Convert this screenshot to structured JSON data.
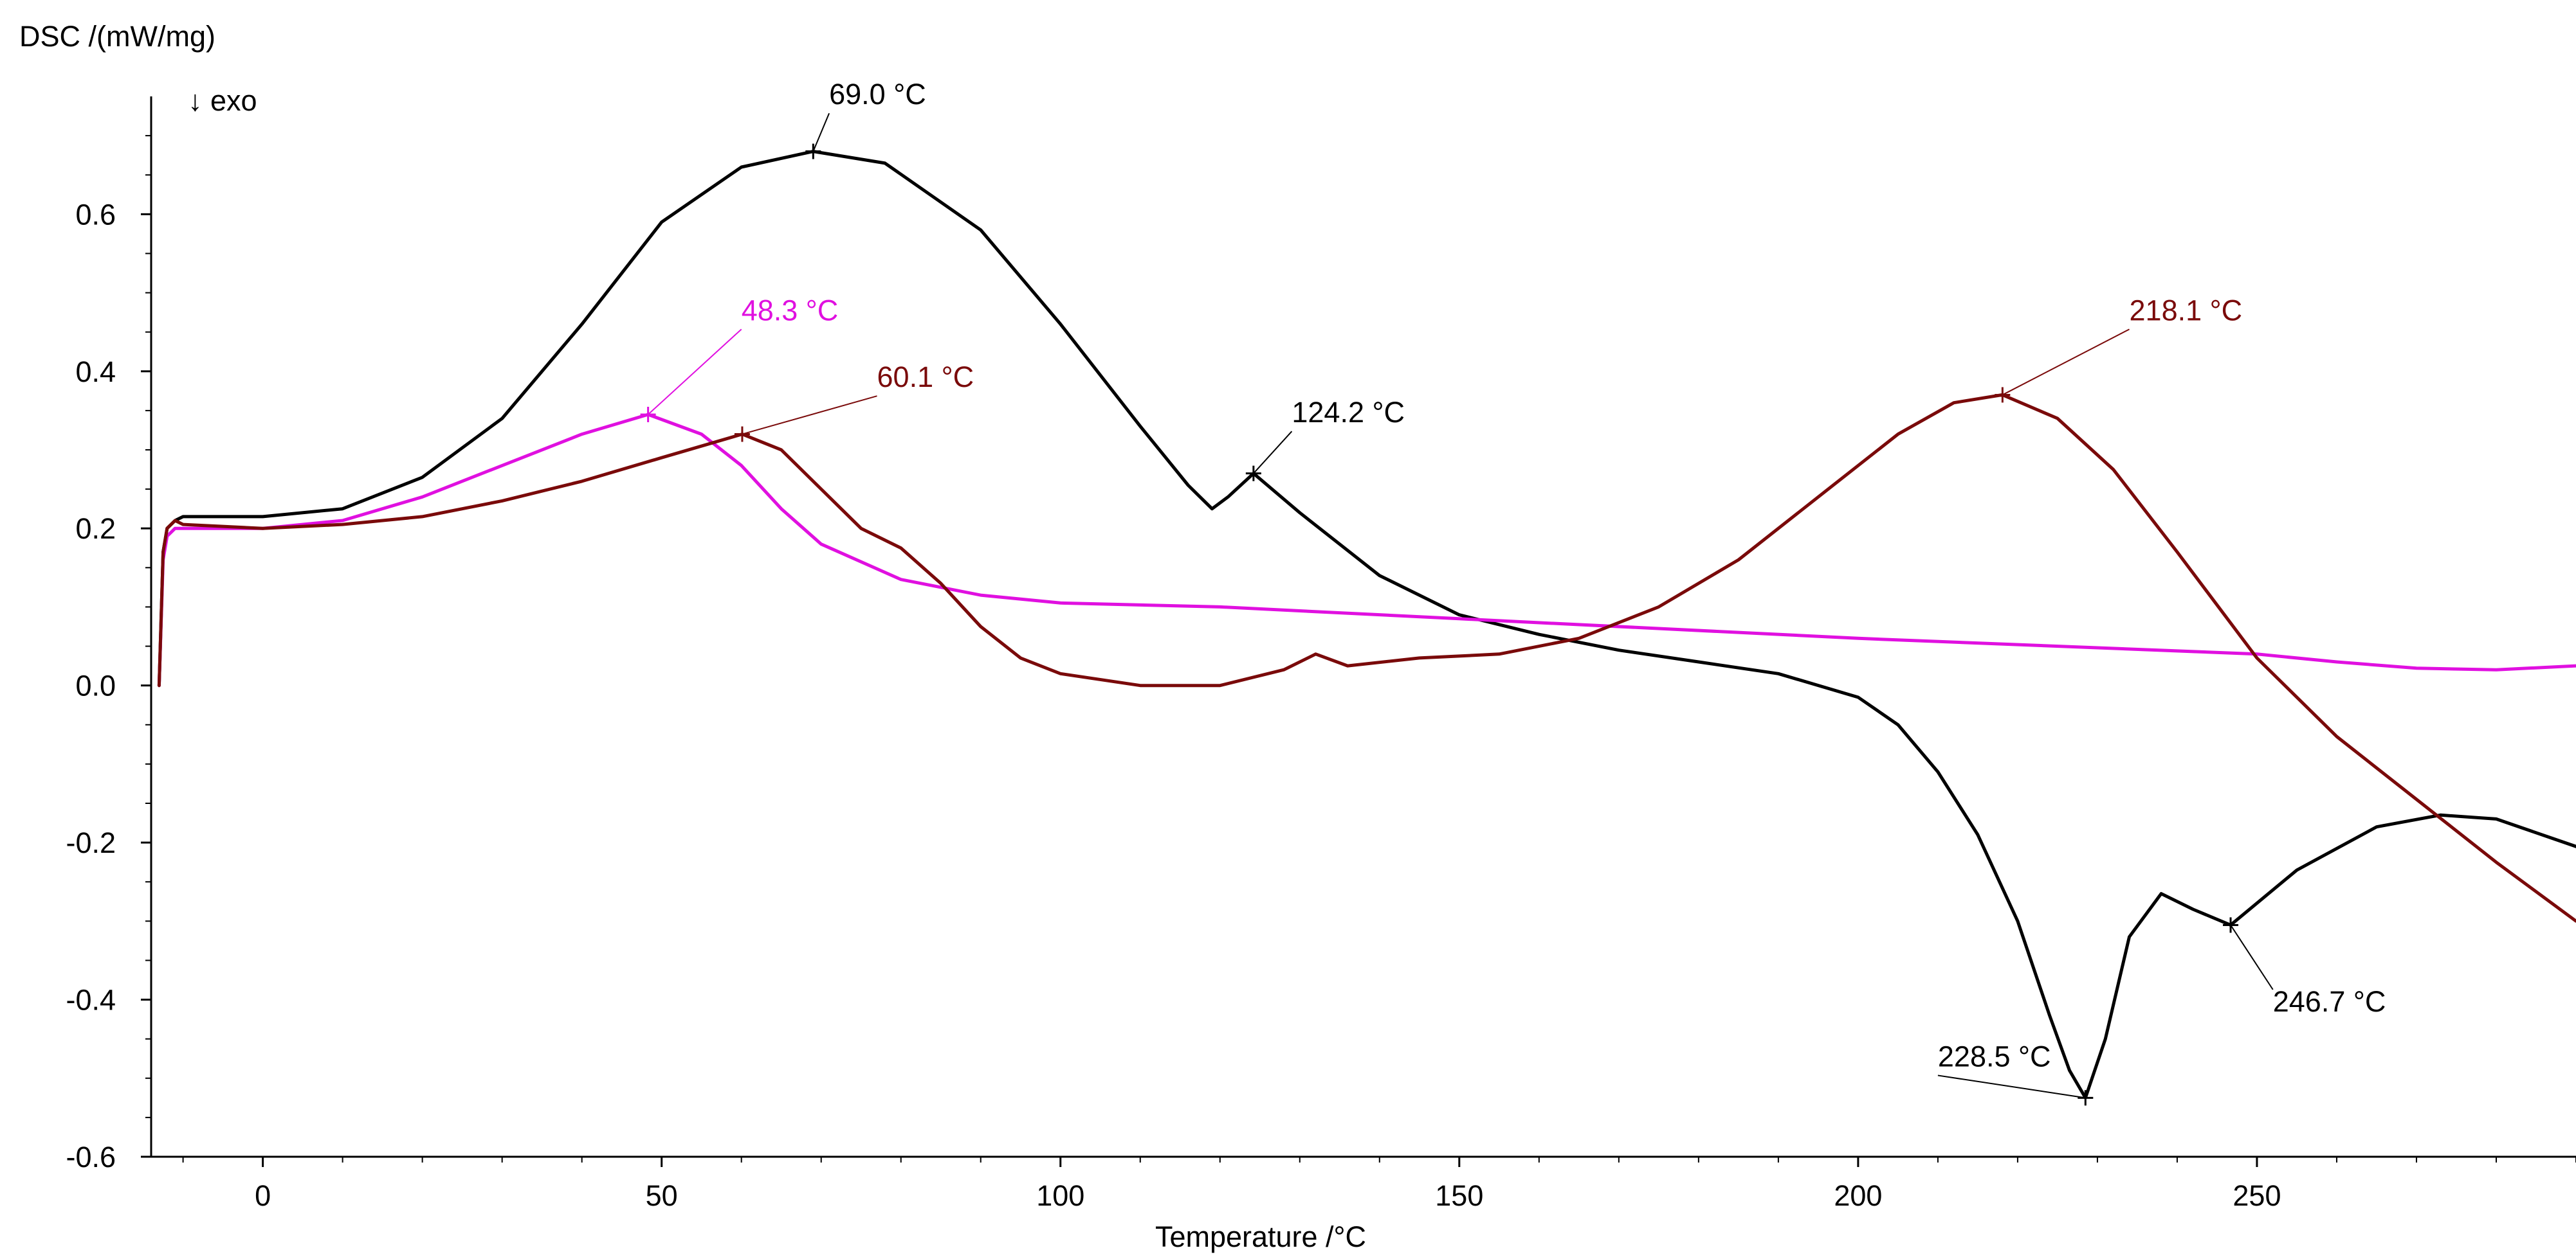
{
  "chart_data": {
    "type": "line",
    "ylabel": "DSC /(mW/mg)",
    "xlabel": "Temperature /°C",
    "direction_note": "↓ exo",
    "xlim": [
      -14,
      290
    ],
    "ylim": [
      -0.6,
      0.75
    ],
    "x_ticks": [
      0,
      50,
      100,
      150,
      200,
      250
    ],
    "x_tick_labels": [
      "0",
      "50",
      "100",
      "150",
      "200",
      "250"
    ],
    "y_ticks": [
      0.6,
      0.4,
      0.2,
      0.0,
      -0.2,
      -0.4,
      -0.6
    ],
    "y_tick_labels": [
      "0.6",
      "0.4",
      "0.2",
      "0.0",
      "-0.2",
      "-0.4",
      "-0.6"
    ],
    "grid": false,
    "series": [
      {
        "name": "black",
        "color": "#000000",
        "x": [
          -13.0,
          -12.5,
          -12.0,
          -11.0,
          -10.0,
          -5.0,
          0.0,
          10.0,
          20.0,
          30.0,
          40.0,
          50.0,
          60.0,
          69.0,
          78.0,
          90.0,
          100.0,
          110.0,
          116.0,
          119.0,
          121.0,
          124.2,
          130.0,
          140.0,
          150.0,
          160.0,
          170.0,
          180.0,
          190.0,
          200.0,
          205.0,
          210.0,
          215.0,
          220.0,
          224.0,
          226.5,
          228.5,
          231.0,
          234.0,
          238.0,
          242.0,
          246.7,
          255.0,
          265.0,
          273.0,
          280.0,
          290.0
        ],
        "y": [
          0.0,
          0.17,
          0.2,
          0.21,
          0.215,
          0.215,
          0.215,
          0.225,
          0.265,
          0.34,
          0.46,
          0.59,
          0.66,
          0.68,
          0.665,
          0.58,
          0.46,
          0.33,
          0.255,
          0.225,
          0.24,
          0.27,
          0.22,
          0.14,
          0.09,
          0.065,
          0.045,
          0.03,
          0.015,
          -0.015,
          -0.05,
          -0.11,
          -0.19,
          -0.3,
          -0.42,
          -0.49,
          -0.525,
          -0.45,
          -0.32,
          -0.265,
          -0.285,
          -0.305,
          -0.235,
          -0.18,
          -0.165,
          -0.17,
          -0.205
        ]
      },
      {
        "name": "magenta",
        "color": "#e010e0",
        "x": [
          -13.0,
          -12.5,
          -12.0,
          -11.0,
          -10.0,
          0.0,
          10.0,
          20.0,
          30.0,
          40.0,
          48.3,
          55.0,
          60.0,
          65.0,
          70.0,
          80.0,
          90.0,
          100.0,
          120.0,
          150.0,
          200.0,
          250.0,
          260.0,
          270.0,
          280.0,
          290.0
        ],
        "y": [
          0.0,
          0.16,
          0.19,
          0.2,
          0.2,
          0.2,
          0.21,
          0.24,
          0.28,
          0.32,
          0.345,
          0.32,
          0.28,
          0.225,
          0.18,
          0.135,
          0.115,
          0.105,
          0.1,
          0.085,
          0.06,
          0.04,
          0.03,
          0.022,
          0.02,
          0.025
        ]
      },
      {
        "name": "darkred",
        "color": "#7a0a0a",
        "x": [
          -13.0,
          -12.5,
          -12.0,
          -11.0,
          -10.0,
          0.0,
          10.0,
          20.0,
          30.0,
          40.0,
          50.0,
          60.1,
          65.0,
          70.0,
          75.0,
          80.0,
          85.0,
          90.0,
          95.0,
          100.0,
          110.0,
          120.0,
          128.0,
          132.0,
          136.0,
          145.0,
          155.0,
          165.0,
          175.0,
          185.0,
          195.0,
          205.0,
          212.0,
          218.1,
          225.0,
          232.0,
          240.0,
          250.0,
          260.0,
          270.0,
          280.0,
          290.0
        ],
        "y": [
          0.0,
          0.17,
          0.2,
          0.21,
          0.205,
          0.2,
          0.205,
          0.215,
          0.235,
          0.26,
          0.29,
          0.32,
          0.3,
          0.25,
          0.2,
          0.175,
          0.13,
          0.075,
          0.035,
          0.015,
          0.0,
          0.0,
          0.02,
          0.04,
          0.025,
          0.035,
          0.04,
          0.06,
          0.1,
          0.16,
          0.24,
          0.32,
          0.36,
          0.37,
          0.34,
          0.275,
          0.17,
          0.035,
          -0.065,
          -0.145,
          -0.225,
          -0.3
        ]
      }
    ],
    "annotations": [
      {
        "text": "69.0 °C",
        "series": "black",
        "x": 69.0,
        "y": 0.68,
        "label_x": 71.0,
        "label_y": 0.74
      },
      {
        "text": "124.2 °C",
        "series": "black",
        "x": 124.2,
        "y": 0.27,
        "label_x": 129.0,
        "label_y": 0.335
      },
      {
        "text": "228.5 °C",
        "series": "black",
        "x": 228.5,
        "y": -0.525,
        "label_x": 210.0,
        "label_y": -0.485
      },
      {
        "text": "246.7 °C",
        "series": "black",
        "x": 246.7,
        "y": -0.305,
        "label_x": 252.0,
        "label_y": -0.415
      },
      {
        "text": "48.3 °C",
        "series": "magenta",
        "x": 48.3,
        "y": 0.345,
        "label_x": 60.0,
        "label_y": 0.465
      },
      {
        "text": "60.1 °C",
        "series": "darkred",
        "x": 60.1,
        "y": 0.32,
        "label_x": 77.0,
        "label_y": 0.38
      },
      {
        "text": "218.1 °C",
        "series": "darkred",
        "x": 218.1,
        "y": 0.37,
        "label_x": 234.0,
        "label_y": 0.465
      }
    ]
  }
}
